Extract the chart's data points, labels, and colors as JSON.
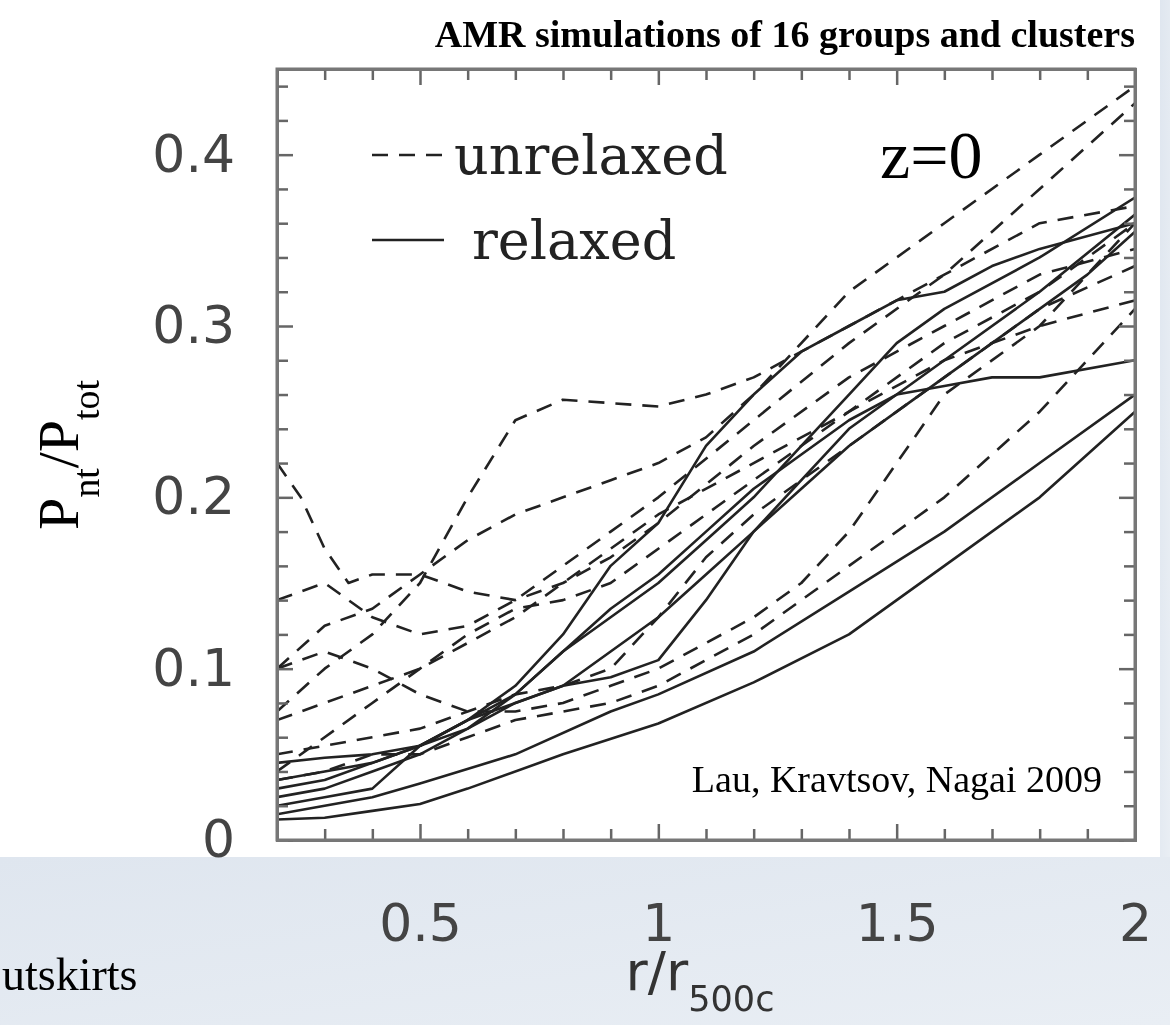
{
  "chart_data": {
    "type": "line",
    "title": "AMR simulations of 16 groups and clusters",
    "xlabel": "r/r$_{500c}$",
    "ylabel": "P$_{nt}$/P$_{tot}$",
    "annotations": [
      "z=0",
      "Lau, Kravtsov, Nagai 2009",
      "utskirts"
    ],
    "xlim": [
      0.2,
      2
    ],
    "ylim": [
      0,
      0.45
    ],
    "xticks": [
      {
        "value": 0.2,
        "label": null
      },
      {
        "value": 0.3,
        "label": null
      },
      {
        "value": 0.4,
        "label": null
      },
      0.5,
      {
        "value": 0.6,
        "label": null
      },
      {
        "value": 0.7,
        "label": null
      },
      {
        "value": 0.8,
        "label": null
      },
      {
        "value": 0.9,
        "label": null
      },
      1,
      {
        "value": 1.1,
        "label": null
      },
      {
        "value": 1.2,
        "label": null
      },
      {
        "value": 1.3,
        "label": null
      },
      {
        "value": 1.4,
        "label": null
      },
      1.5,
      {
        "value": 1.6,
        "label": null
      },
      {
        "value": 1.7,
        "label": null
      },
      {
        "value": 1.8,
        "label": null
      },
      {
        "value": 1.9,
        "label": null
      },
      2
    ],
    "yticks": [
      0,
      {
        "value": 0.02,
        "label": null
      },
      {
        "value": 0.04,
        "label": null
      },
      {
        "value": 0.06,
        "label": null
      },
      {
        "value": 0.08,
        "label": null
      },
      0.1,
      {
        "value": 0.12,
        "label": null
      },
      {
        "value": 0.14,
        "label": null
      },
      {
        "value": 0.16,
        "label": null
      },
      {
        "value": 0.18,
        "label": null
      },
      0.2,
      {
        "value": 0.22,
        "label": null
      },
      {
        "value": 0.24,
        "label": null
      },
      {
        "value": 0.26,
        "label": null
      },
      {
        "value": 0.28,
        "label": null
      },
      0.3,
      {
        "value": 0.32,
        "label": null
      },
      {
        "value": 0.34,
        "label": null
      },
      {
        "value": 0.36,
        "label": null
      },
      {
        "value": 0.38,
        "label": null
      },
      0.4,
      {
        "value": 0.42,
        "label": null
      },
      {
        "value": 0.44,
        "label": null
      }
    ],
    "legend": "top left",
    "grid": false,
    "marker": "none",
    "series": [
      {
        "name": "unrelaxed",
        "color": "#222222",
        "line_style": "dashed",
        "x": [
          0.2,
          0.3,
          0.4,
          0.5,
          0.6,
          0.7,
          0.8,
          0.9,
          1.0,
          1.1,
          1.2,
          1.3,
          1.4,
          1.5,
          1.6,
          1.8,
          2.0
        ],
        "values": [
          0.075,
          0.1,
          0.12,
          0.15,
          0.2,
          0.245,
          0.257,
          0.255,
          0.253,
          0.26,
          0.27,
          0.285,
          0.3,
          0.315,
          0.33,
          0.36,
          0.37
        ]
      },
      {
        "color": "#222222",
        "line_style": "dashed",
        "x": [
          0.2,
          0.25,
          0.3,
          0.35,
          0.4,
          0.5,
          0.6,
          0.7,
          0.8,
          0.9,
          1.0,
          1.2,
          1.4,
          1.6,
          1.8,
          2.0
        ],
        "values": [
          0.22,
          0.2,
          0.17,
          0.15,
          0.155,
          0.155,
          0.145,
          0.14,
          0.15,
          0.165,
          0.185,
          0.23,
          0.27,
          0.3,
          0.33,
          0.345
        ]
      },
      {
        "color": "#222222",
        "line_style": "dashed",
        "x": [
          0.2,
          0.3,
          0.4,
          0.5,
          0.6,
          0.7,
          0.8,
          0.9,
          1.0,
          1.1,
          1.2,
          1.3,
          1.4,
          1.6,
          1.8,
          2.0
        ],
        "values": [
          0.1,
          0.125,
          0.135,
          0.155,
          0.175,
          0.19,
          0.2,
          0.21,
          0.22,
          0.235,
          0.26,
          0.29,
          0.32,
          0.36,
          0.4,
          0.44
        ]
      },
      {
        "color": "#222222",
        "line_style": "dashed",
        "x": [
          0.2,
          0.3,
          0.4,
          0.5,
          0.6,
          0.7,
          0.8,
          0.9,
          1.0,
          1.2,
          1.4,
          1.6,
          1.8,
          2.0
        ],
        "values": [
          0.14,
          0.15,
          0.13,
          0.12,
          0.125,
          0.14,
          0.16,
          0.18,
          0.2,
          0.245,
          0.29,
          0.33,
          0.38,
          0.43
        ]
      },
      {
        "color": "#222222",
        "line_style": "dashed",
        "x": [
          0.2,
          0.3,
          0.4,
          0.5,
          0.6,
          0.7,
          0.8,
          0.9,
          1.0,
          1.1,
          1.2,
          1.3,
          1.4,
          1.5,
          1.6,
          1.8,
          2.0
        ],
        "values": [
          0.1,
          0.11,
          0.1,
          0.085,
          0.075,
          0.075,
          0.08,
          0.09,
          0.1,
          0.115,
          0.13,
          0.15,
          0.18,
          0.22,
          0.26,
          0.3,
          0.36
        ]
      },
      {
        "color": "#222222",
        "line_style": "dashed",
        "x": [
          0.2,
          0.3,
          0.4,
          0.5,
          0.6,
          0.7,
          0.8,
          0.9,
          1.0,
          1.2,
          1.4,
          1.6,
          1.8,
          2.0
        ],
        "values": [
          0.07,
          0.08,
          0.09,
          0.1,
          0.115,
          0.13,
          0.15,
          0.17,
          0.19,
          0.22,
          0.25,
          0.28,
          0.3,
          0.315
        ]
      },
      {
        "color": "#222222",
        "line_style": "dashed",
        "x": [
          0.2,
          0.3,
          0.4,
          0.5,
          0.6,
          0.7,
          0.8,
          0.9,
          1.0,
          1.1,
          1.2,
          1.4,
          1.6,
          1.8,
          2.0
        ],
        "values": [
          0.05,
          0.055,
          0.06,
          0.065,
          0.075,
          0.085,
          0.09,
          0.1,
          0.13,
          0.165,
          0.19,
          0.23,
          0.27,
          0.31,
          0.335
        ]
      },
      {
        "color": "#222222",
        "line_style": "dashed",
        "x": [
          0.2,
          0.3,
          0.4,
          0.5,
          0.6,
          0.7,
          0.8,
          0.9,
          1.0,
          1.2,
          1.4,
          1.6,
          1.8,
          2.0
        ],
        "values": [
          0.04,
          0.06,
          0.08,
          0.1,
          0.12,
          0.135,
          0.14,
          0.15,
          0.17,
          0.21,
          0.25,
          0.29,
          0.32,
          0.36
        ]
      },
      {
        "color": "#222222",
        "line_style": "dashed",
        "x": [
          0.2,
          0.3,
          0.4,
          0.5,
          0.6,
          0.7,
          0.8,
          0.9,
          1.0,
          1.2,
          1.4,
          1.6,
          1.8,
          2.0
        ],
        "values": [
          0.035,
          0.04,
          0.05,
          0.05,
          0.06,
          0.07,
          0.075,
          0.08,
          0.09,
          0.12,
          0.16,
          0.2,
          0.25,
          0.31
        ]
      },
      {
        "name": "relaxed",
        "color": "#222222",
        "line_style": "solid",
        "x": [
          0.2,
          0.3,
          0.4,
          0.5,
          0.6,
          0.8,
          1.0,
          1.2,
          1.4,
          1.5,
          1.6,
          1.8,
          2.0
        ],
        "values": [
          0.012,
          0.013,
          0.017,
          0.021,
          0.03,
          0.05,
          0.068,
          0.092,
          0.12,
          0.14,
          0.16,
          0.2,
          0.25
        ]
      },
      {
        "color": "#222222",
        "line_style": "solid",
        "x": [
          0.2,
          0.3,
          0.4,
          0.5,
          0.7,
          0.9,
          1.0,
          1.2,
          1.4,
          1.6,
          1.8,
          2.0
        ],
        "values": [
          0.015,
          0.02,
          0.025,
          0.033,
          0.05,
          0.075,
          0.085,
          0.11,
          0.145,
          0.18,
          0.22,
          0.26
        ]
      },
      {
        "color": "#222222",
        "line_style": "solid",
        "x": [
          0.2,
          0.3,
          0.4,
          0.5,
          0.6,
          0.7,
          0.8,
          0.9,
          1.0,
          1.1,
          1.2,
          1.3,
          1.4,
          1.5,
          1.6,
          1.7,
          1.8,
          2.0
        ],
        "values": [
          0.03,
          0.035,
          0.045,
          0.055,
          0.065,
          0.08,
          0.09,
          0.095,
          0.105,
          0.14,
          0.18,
          0.21,
          0.24,
          0.26,
          0.265,
          0.27,
          0.27,
          0.28
        ]
      },
      {
        "color": "#222222",
        "line_style": "solid",
        "x": [
          0.2,
          0.3,
          0.4,
          0.5,
          0.6,
          0.7,
          0.8,
          0.9,
          1.0,
          1.1,
          1.2,
          1.3,
          1.4,
          1.5,
          1.6,
          1.8,
          2.0
        ],
        "values": [
          0.045,
          0.048,
          0.05,
          0.055,
          0.07,
          0.085,
          0.11,
          0.135,
          0.155,
          0.18,
          0.205,
          0.225,
          0.245,
          0.26,
          0.28,
          0.32,
          0.365
        ]
      },
      {
        "color": "#222222",
        "line_style": "solid",
        "x": [
          0.2,
          0.3,
          0.4,
          0.5,
          0.6,
          0.7,
          0.8,
          0.9,
          1.0,
          1.1,
          1.2,
          1.3,
          1.4,
          1.5,
          1.6,
          1.7,
          1.8,
          2.0
        ],
        "values": [
          0.02,
          0.025,
          0.03,
          0.055,
          0.07,
          0.09,
          0.12,
          0.16,
          0.185,
          0.23,
          0.26,
          0.285,
          0.3,
          0.315,
          0.32,
          0.335,
          0.345,
          0.36
        ]
      },
      {
        "color": "#222222",
        "line_style": "solid",
        "x": [
          0.2,
          0.3,
          0.4,
          0.5,
          0.6,
          0.7,
          0.8,
          0.9,
          1.0,
          1.1,
          1.2,
          1.3,
          1.4,
          1.5,
          1.6,
          1.8,
          2.0
        ],
        "values": [
          0.025,
          0.03,
          0.04,
          0.05,
          0.065,
          0.085,
          0.11,
          0.13,
          0.15,
          0.175,
          0.2,
          0.23,
          0.26,
          0.29,
          0.31,
          0.34,
          0.375
        ]
      },
      {
        "color": "#222222",
        "line_style": "solid",
        "x": [
          0.2,
          0.3,
          0.4,
          0.5,
          0.6,
          0.7,
          0.8,
          0.9,
          1.0,
          1.1,
          1.2,
          1.3,
          1.4,
          1.5,
          1.6,
          1.7,
          1.8,
          1.9,
          2.0
        ],
        "values": [
          0.035,
          0.04,
          0.045,
          0.055,
          0.07,
          0.08,
          0.09,
          0.11,
          0.13,
          0.155,
          0.18,
          0.205,
          0.23,
          0.25,
          0.27,
          0.29,
          0.31,
          0.33,
          0.355
        ]
      }
    ]
  }
}
